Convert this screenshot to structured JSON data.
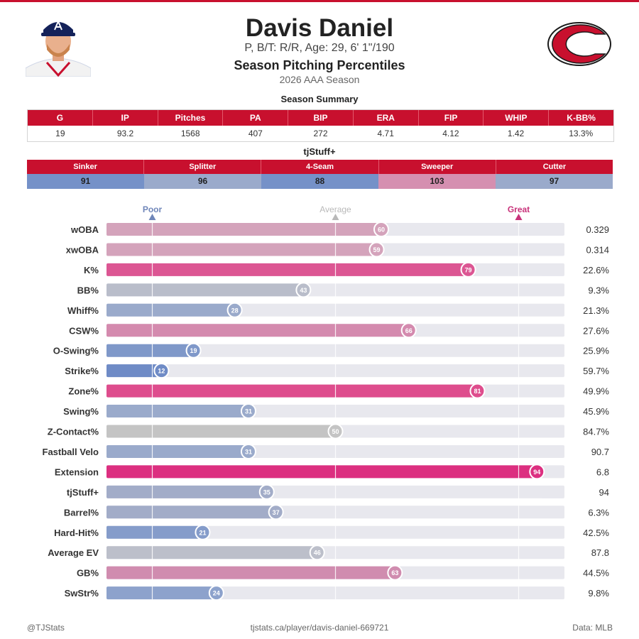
{
  "header": {
    "name": "Davis Daniel",
    "info": "P, B/T: R/R, Age: 29, 6' 1\"/190",
    "title": "Season Pitching Percentiles",
    "season": "2026 AAA Season"
  },
  "summary": {
    "title": "Season Summary",
    "columns": [
      "G",
      "IP",
      "Pitches",
      "PA",
      "BIP",
      "ERA",
      "FIP",
      "WHIP",
      "K-BB%"
    ],
    "values": [
      "19",
      "93.2",
      "1568",
      "407",
      "272",
      "4.71",
      "4.12",
      "1.42",
      "13.3%"
    ]
  },
  "tjstuff": {
    "title": "tjStuff+",
    "pitches": [
      "Sinker",
      "Splitter",
      "4-Seam",
      "Sweeper",
      "Cutter"
    ],
    "values": [
      "91",
      "96",
      "88",
      "103",
      "97"
    ],
    "colors": [
      "#7591c8",
      "#9aaacb",
      "#7591c8",
      "#d58fb0",
      "#9aaacb"
    ]
  },
  "chart_data": {
    "type": "bar",
    "orientation": "horizontal",
    "xlim": [
      0,
      100
    ],
    "reference_lines": [
      10,
      50,
      90
    ],
    "scale_labels": [
      {
        "text": "Poor",
        "at": 10,
        "color": "#6f86b9"
      },
      {
        "text": "Average",
        "at": 50,
        "color": "#b9b9b9"
      },
      {
        "text": "Great",
        "at": 90,
        "color": "#c8327a"
      }
    ],
    "categories": [
      "wOBA",
      "xwOBA",
      "K%",
      "BB%",
      "Whiff%",
      "CSW%",
      "O-Swing%",
      "Strike%",
      "Zone%",
      "Swing%",
      "Z-Contact%",
      "Fastball Velo",
      "Extension",
      "tjStuff+",
      "Barrel%",
      "Hard-Hit%",
      "Average EV",
      "GB%",
      "SwStr%"
    ],
    "percentiles": [
      60,
      59,
      79,
      43,
      28,
      66,
      19,
      12,
      81,
      31,
      50,
      31,
      94,
      35,
      37,
      21,
      46,
      63,
      24
    ],
    "values": [
      "0.329",
      "0.314",
      "22.6%",
      "9.3%",
      "21.3%",
      "27.6%",
      "25.9%",
      "59.7%",
      "49.9%",
      "45.9%",
      "84.7%",
      "90.7",
      "6.8",
      "94",
      "6.3%",
      "42.5%",
      "87.8",
      "44.5%",
      "9.8%"
    ],
    "bar_colors": [
      "#d4a3bb",
      "#d4a3bb",
      "#dc5693",
      "#b9bdca",
      "#9aaacb",
      "#d48aae",
      "#7f98c9",
      "#6f8bc6",
      "#de4d8d",
      "#9aaacb",
      "#c4c4c4",
      "#9aaacb",
      "#dc2f80",
      "#a2acc8",
      "#a2acc8",
      "#859cca",
      "#bcbfca",
      "#d08caf",
      "#8da2cc"
    ]
  },
  "footer": {
    "left": "@TJStats",
    "center": "tjstats.ca/player/davis-daniel-669721",
    "right": "Data: MLB"
  }
}
